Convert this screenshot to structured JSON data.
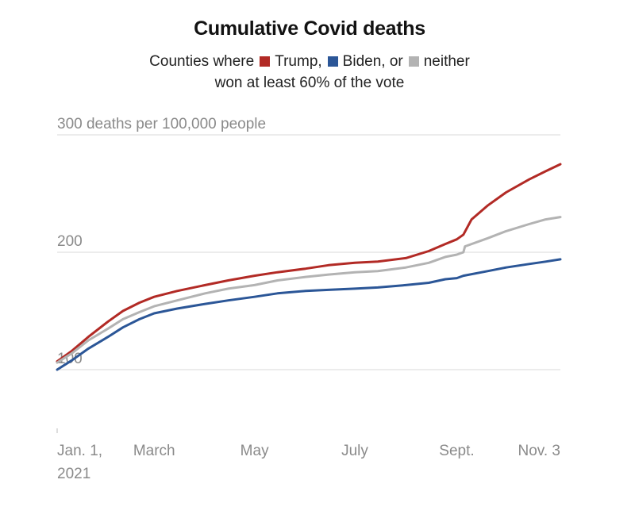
{
  "title": "Cumulative Covid deaths",
  "legend": {
    "prefix": "Counties where",
    "trump": "Trump,",
    "biden": "Biden, or",
    "neither": "neither",
    "line2": "won at least 60% of the vote"
  },
  "colors": {
    "trump": "#b22a25",
    "biden": "#2b5697",
    "neither": "#b3b3b3",
    "grid": "#d9d9d9",
    "axis": "#8a8a8a"
  },
  "chart_data": {
    "type": "line",
    "title": "Cumulative Covid deaths",
    "ylabel": "300 deaths per 100,000 people",
    "ylim": [
      50,
      300
    ],
    "yticks": [
      {
        "value": 100,
        "label": "100"
      },
      {
        "value": 200,
        "label": "200"
      },
      {
        "value": 300,
        "label": "300 deaths per 100,000 people"
      }
    ],
    "xlim": [
      "2021-01-01",
      "2021-11-03"
    ],
    "xticks": [
      {
        "date": "2021-01-01",
        "label": "Jan. 1,",
        "label2": "2021"
      },
      {
        "date": "2021-03-01",
        "label": "March"
      },
      {
        "date": "2021-05-01",
        "label": "May"
      },
      {
        "date": "2021-07-01",
        "label": "July"
      },
      {
        "date": "2021-09-01",
        "label": "Sept."
      },
      {
        "date": "2021-11-03",
        "label": "Nov. 3"
      }
    ],
    "grid": true,
    "series": [
      {
        "key": "trump",
        "name": "Trump",
        "points": [
          [
            "2021-01-01",
            107
          ],
          [
            "2021-01-10",
            116
          ],
          [
            "2021-01-20",
            128
          ],
          [
            "2021-02-01",
            141
          ],
          [
            "2021-02-10",
            150
          ],
          [
            "2021-02-20",
            157
          ],
          [
            "2021-03-01",
            162
          ],
          [
            "2021-03-15",
            167
          ],
          [
            "2021-04-01",
            172
          ],
          [
            "2021-04-15",
            176
          ],
          [
            "2021-05-01",
            180
          ],
          [
            "2021-05-15",
            183
          ],
          [
            "2021-06-01",
            186
          ],
          [
            "2021-06-15",
            189
          ],
          [
            "2021-07-01",
            191
          ],
          [
            "2021-07-15",
            192
          ],
          [
            "2021-08-01",
            195
          ],
          [
            "2021-08-15",
            201
          ],
          [
            "2021-08-25",
            207
          ],
          [
            "2021-09-01",
            211
          ],
          [
            "2021-09-05",
            215
          ],
          [
            "2021-09-10",
            228
          ],
          [
            "2021-09-20",
            240
          ],
          [
            "2021-10-01",
            251
          ],
          [
            "2021-10-15",
            262
          ],
          [
            "2021-10-25",
            269
          ],
          [
            "2021-11-03",
            275
          ]
        ]
      },
      {
        "key": "neither",
        "name": "neither",
        "points": [
          [
            "2021-01-01",
            106
          ],
          [
            "2021-01-10",
            114
          ],
          [
            "2021-01-20",
            125
          ],
          [
            "2021-02-01",
            135
          ],
          [
            "2021-02-10",
            143
          ],
          [
            "2021-02-20",
            149
          ],
          [
            "2021-03-01",
            154
          ],
          [
            "2021-03-15",
            159
          ],
          [
            "2021-04-01",
            165
          ],
          [
            "2021-04-15",
            169
          ],
          [
            "2021-05-01",
            172
          ],
          [
            "2021-05-15",
            176
          ],
          [
            "2021-06-01",
            179
          ],
          [
            "2021-06-15",
            181
          ],
          [
            "2021-07-01",
            183
          ],
          [
            "2021-07-15",
            184
          ],
          [
            "2021-08-01",
            187
          ],
          [
            "2021-08-15",
            191
          ],
          [
            "2021-08-25",
            196
          ],
          [
            "2021-09-01",
            198
          ],
          [
            "2021-09-05",
            200
          ],
          [
            "2021-09-06",
            205
          ],
          [
            "2021-09-20",
            212
          ],
          [
            "2021-10-01",
            218
          ],
          [
            "2021-10-15",
            224
          ],
          [
            "2021-10-25",
            228
          ],
          [
            "2021-11-03",
            230
          ]
        ]
      },
      {
        "key": "biden",
        "name": "Biden",
        "points": [
          [
            "2021-01-01",
            100
          ],
          [
            "2021-01-10",
            108
          ],
          [
            "2021-01-20",
            118
          ],
          [
            "2021-02-01",
            128
          ],
          [
            "2021-02-10",
            136
          ],
          [
            "2021-02-20",
            143
          ],
          [
            "2021-03-01",
            148
          ],
          [
            "2021-03-15",
            152
          ],
          [
            "2021-04-01",
            156
          ],
          [
            "2021-04-15",
            159
          ],
          [
            "2021-05-01",
            162
          ],
          [
            "2021-05-15",
            165
          ],
          [
            "2021-06-01",
            167
          ],
          [
            "2021-06-15",
            168
          ],
          [
            "2021-07-01",
            169
          ],
          [
            "2021-07-15",
            170
          ],
          [
            "2021-08-01",
            172
          ],
          [
            "2021-08-15",
            174
          ],
          [
            "2021-08-25",
            177
          ],
          [
            "2021-09-01",
            178
          ],
          [
            "2021-09-05",
            180
          ],
          [
            "2021-09-20",
            184
          ],
          [
            "2021-10-01",
            187
          ],
          [
            "2021-10-15",
            190
          ],
          [
            "2021-10-25",
            192
          ],
          [
            "2021-11-03",
            194
          ]
        ]
      }
    ]
  }
}
